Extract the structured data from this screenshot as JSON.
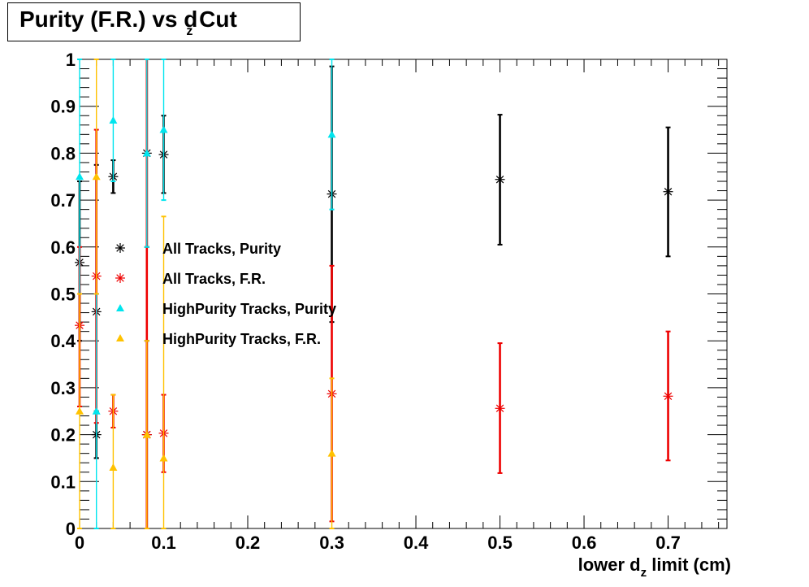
{
  "chart_data": {
    "type": "scatter",
    "title": "Purity (F.R.) vs d",
    "title_subscript": "z",
    "title_suffix": " Cut",
    "xlabel": "lower d",
    "xlabel_subscript": "z",
    "xlabel_suffix": " limit (cm)",
    "ylabel": "",
    "xlim": [
      0,
      0.77
    ],
    "ylim": [
      0,
      1
    ],
    "x_ticks": [
      0,
      0.1,
      0.2,
      0.3,
      0.4,
      0.5,
      0.6,
      0.7
    ],
    "x_tick_labels": [
      "0",
      "0.1",
      "0.2",
      "0.3",
      "0.4",
      "0.5",
      "0.6",
      "0.7"
    ],
    "y_ticks": [
      0,
      0.1,
      0.2,
      0.3,
      0.4,
      0.5,
      0.6,
      0.7,
      0.8,
      0.9,
      1
    ],
    "y_tick_labels": [
      "0",
      "0.1",
      "0.2",
      "0.3",
      "0.4",
      "0.5",
      "0.6",
      "0.7",
      "0.8",
      "0.9",
      "1"
    ],
    "grid": false,
    "legend_position": "middle-left",
    "series": [
      {
        "name": "All Tracks, Purity",
        "color": "#000000",
        "marker": "star",
        "points": [
          {
            "x": 0.0,
            "y": 0.567,
            "lo": 0.4,
            "hi": 0.74
          },
          {
            "x": 0.02,
            "y": 0.462,
            "lo": 0.15,
            "hi": 0.775
          },
          {
            "x": 0.02,
            "y": 0.2,
            "lo": 0.15,
            "hi": 0.25
          },
          {
            "x": 0.04,
            "y": 0.75,
            "lo": 0.715,
            "hi": 0.785
          },
          {
            "x": 0.08,
            "y": 0.8,
            "lo": 0.6,
            "hi": 1.0
          },
          {
            "x": 0.08,
            "y": 0.2,
            "lo": 0.0,
            "hi": 0.4
          },
          {
            "x": 0.1,
            "y": 0.797,
            "lo": 0.715,
            "hi": 0.88
          },
          {
            "x": 0.3,
            "y": 0.713,
            "lo": 0.44,
            "hi": 0.985
          },
          {
            "x": 0.5,
            "y": 0.744,
            "lo": 0.605,
            "hi": 0.882
          },
          {
            "x": 0.7,
            "y": 0.718,
            "lo": 0.58,
            "hi": 0.855
          }
        ]
      },
      {
        "name": "All Tracks, F.R.",
        "color": "#ee0000",
        "marker": "star",
        "points": [
          {
            "x": 0.0,
            "y": 0.433,
            "lo": 0.26,
            "hi": 0.6
          },
          {
            "x": 0.02,
            "y": 0.538,
            "lo": 0.225,
            "hi": 0.85
          },
          {
            "x": 0.04,
            "y": 0.25,
            "lo": 0.215,
            "hi": 0.285
          },
          {
            "x": 0.08,
            "y": 0.2,
            "lo": 0.0,
            "hi": 1.0
          },
          {
            "x": 0.1,
            "y": 0.203,
            "lo": 0.12,
            "hi": 0.285
          },
          {
            "x": 0.3,
            "y": 0.287,
            "lo": 0.015,
            "hi": 0.56
          },
          {
            "x": 0.5,
            "y": 0.256,
            "lo": 0.118,
            "hi": 0.395
          },
          {
            "x": 0.7,
            "y": 0.282,
            "lo": 0.145,
            "hi": 0.42
          }
        ]
      },
      {
        "name": "HighPurity Tracks, Purity",
        "color": "#00e5ee",
        "marker": "triangle",
        "points": [
          {
            "x": 0.0,
            "y": 0.75,
            "lo": 0.5,
            "hi": 1.0
          },
          {
            "x": 0.02,
            "y": 0.25,
            "lo": 0.0,
            "hi": 0.5
          },
          {
            "x": 0.04,
            "y": 0.87,
            "lo": 0.74,
            "hi": 1.0
          },
          {
            "x": 0.08,
            "y": 0.8,
            "lo": 0.6,
            "hi": 1.0
          },
          {
            "x": 0.1,
            "y": 0.85,
            "lo": 0.7,
            "hi": 1.0
          },
          {
            "x": 0.3,
            "y": 0.84,
            "lo": 0.68,
            "hi": 1.0
          }
        ]
      },
      {
        "name": "HighPurity Tracks, F.R.",
        "color": "#ffc200",
        "marker": "triangle",
        "points": [
          {
            "x": 0.0,
            "y": 0.25,
            "lo": 0.0,
            "hi": 0.5
          },
          {
            "x": 0.02,
            "y": 0.75,
            "lo": 0.5,
            "hi": 1.0
          },
          {
            "x": 0.04,
            "y": 0.13,
            "lo": 0.0,
            "hi": 0.285
          },
          {
            "x": 0.08,
            "y": 0.2,
            "lo": 0.0,
            "hi": 0.4
          },
          {
            "x": 0.1,
            "y": 0.15,
            "lo": 0.0,
            "hi": 0.665
          },
          {
            "x": 0.3,
            "y": 0.16,
            "lo": 0.0,
            "hi": 0.32
          }
        ]
      }
    ]
  }
}
